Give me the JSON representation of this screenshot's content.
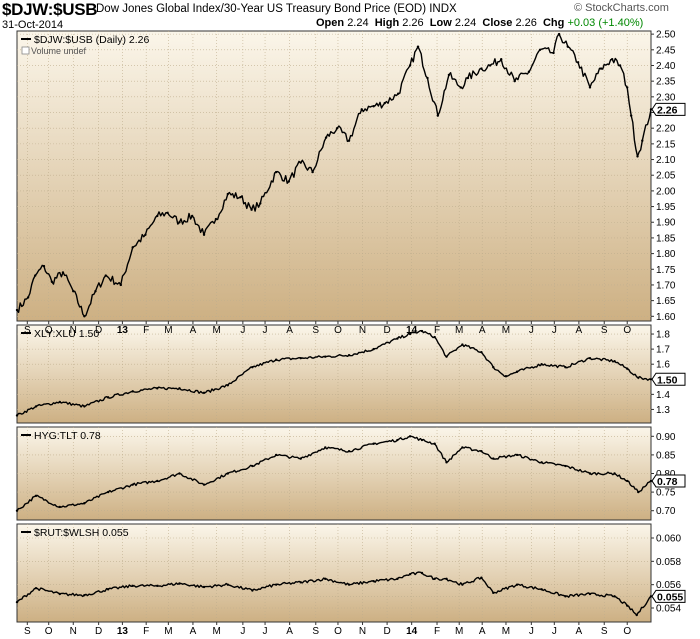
{
  "header": {
    "symbol": "$DJW:$USB",
    "description": "Dow Jones Global Index/30-Year US Treasury Bond Price (EOD)",
    "exchange": "INDX",
    "date": "31-Oct-2014",
    "open_label": "Open",
    "open": "2.24",
    "high_label": "High",
    "high": "2.26",
    "low_label": "Low",
    "low": "2.24",
    "close_label": "Close",
    "close": "2.26",
    "chg_label": "Chg",
    "chg": "+0.03 (+1.40%)",
    "logo": "© StockCharts.com",
    "chg_color": "#008800"
  },
  "chart_data": [
    {
      "type": "line",
      "legend": "$DJW:$USB (Daily) 2.26",
      "note": "Volume undef",
      "last_value": "2.26",
      "ylim": [
        1.585,
        2.51
      ],
      "yticks": [
        "1.60",
        "1.65",
        "1.70",
        "1.75",
        "1.80",
        "1.85",
        "1.90",
        "1.95",
        "2.00",
        "2.05",
        "2.10",
        "2.15",
        "2.20",
        "2.25",
        "2.30",
        "2.35",
        "2.40",
        "2.45",
        "2.50"
      ],
      "x": [
        "2012-08-22",
        "2012-09-05",
        "2012-09-14",
        "2012-09-25",
        "2012-10-05",
        "2012-10-19",
        "2012-11-01",
        "2012-11-15",
        "2012-11-29",
        "2012-12-12",
        "2012-12-31",
        "2013-01-15",
        "2013-01-31",
        "2013-02-15",
        "2013-02-28",
        "2013-03-15",
        "2013-03-31",
        "2013-04-15",
        "2013-04-30",
        "2013-05-15",
        "2013-05-31",
        "2013-06-14",
        "2013-06-25",
        "2013-07-15",
        "2013-07-31",
        "2013-08-15",
        "2013-08-30",
        "2013-09-16",
        "2013-09-30",
        "2013-10-15",
        "2013-10-31",
        "2013-11-15",
        "2013-11-29",
        "2013-12-16",
        "2013-12-31",
        "2014-01-10",
        "2014-01-22",
        "2014-02-04",
        "2014-02-18",
        "2014-03-05",
        "2014-03-14",
        "2014-03-31",
        "2014-04-11",
        "2014-04-25",
        "2014-05-12",
        "2014-05-30",
        "2014-06-13",
        "2014-06-30",
        "2014-07-07",
        "2014-07-18",
        "2014-07-31",
        "2014-08-15",
        "2014-08-29",
        "2014-09-12",
        "2014-09-22",
        "2014-10-01",
        "2014-10-06",
        "2014-10-14",
        "2014-10-20",
        "2014-10-31"
      ],
      "series": [
        {
          "values": [
            1.62,
            1.66,
            1.73,
            1.76,
            1.71,
            1.74,
            1.68,
            1.6,
            1.68,
            1.73,
            1.7,
            1.82,
            1.86,
            1.92,
            1.93,
            1.9,
            1.92,
            1.86,
            1.91,
            1.99,
            1.98,
            1.94,
            1.96,
            2.06,
            2.03,
            2.09,
            2.06,
            2.17,
            2.2,
            2.16,
            2.26,
            2.27,
            2.28,
            2.31,
            2.4,
            2.46,
            2.36,
            2.24,
            2.37,
            2.33,
            2.36,
            2.39,
            2.4,
            2.42,
            2.35,
            2.38,
            2.45,
            2.44,
            2.5,
            2.46,
            2.41,
            2.33,
            2.39,
            2.42,
            2.4,
            2.33,
            2.24,
            2.11,
            2.16,
            2.26
          ]
        }
      ]
    },
    {
      "type": "line",
      "legend": "XLY:XLU 1.50",
      "last_value": "1.50",
      "ylim": [
        1.21,
        1.86
      ],
      "yticks": [
        "1.3",
        "1.4",
        "1.5",
        "1.6",
        "1.7",
        "1.8"
      ],
      "x": [
        "2012-08-22",
        "2012-09-15",
        "2012-10-15",
        "2012-11-15",
        "2012-12-15",
        "2013-01-15",
        "2013-02-15",
        "2013-03-15",
        "2013-04-15",
        "2013-05-15",
        "2013-06-15",
        "2013-07-15",
        "2013-08-15",
        "2013-09-15",
        "2013-10-15",
        "2013-11-15",
        "2013-12-15",
        "2013-12-31",
        "2014-01-15",
        "2014-01-31",
        "2014-02-15",
        "2014-03-07",
        "2014-03-31",
        "2014-04-15",
        "2014-05-01",
        "2014-05-15",
        "2014-06-15",
        "2014-07-15",
        "2014-08-15",
        "2014-09-15",
        "2014-10-01",
        "2014-10-15",
        "2014-10-31"
      ],
      "series": [
        {
          "values": [
            1.26,
            1.32,
            1.35,
            1.32,
            1.38,
            1.42,
            1.44,
            1.44,
            1.41,
            1.46,
            1.58,
            1.63,
            1.64,
            1.65,
            1.66,
            1.7,
            1.77,
            1.8,
            1.82,
            1.78,
            1.65,
            1.73,
            1.68,
            1.58,
            1.52,
            1.55,
            1.6,
            1.58,
            1.64,
            1.62,
            1.57,
            1.51,
            1.5
          ]
        }
      ]
    },
    {
      "type": "line",
      "legend": "HYG:TLT 0.78",
      "last_value": "0.78",
      "ylim": [
        0.675,
        0.925
      ],
      "yticks": [
        "0.70",
        "0.75",
        "0.80",
        "0.85",
        "0.90"
      ],
      "x": [
        "2012-08-22",
        "2012-09-15",
        "2012-10-15",
        "2012-11-15",
        "2012-12-15",
        "2013-01-15",
        "2013-02-15",
        "2013-03-15",
        "2013-04-15",
        "2013-05-15",
        "2013-06-15",
        "2013-07-15",
        "2013-08-15",
        "2013-09-15",
        "2013-10-15",
        "2013-11-15",
        "2013-12-15",
        "2013-12-31",
        "2014-01-15",
        "2014-01-31",
        "2014-02-15",
        "2014-03-07",
        "2014-03-31",
        "2014-04-15",
        "2014-05-15",
        "2014-06-15",
        "2014-07-15",
        "2014-08-15",
        "2014-09-15",
        "2014-10-01",
        "2014-10-15",
        "2014-10-31"
      ],
      "series": [
        {
          "values": [
            0.7,
            0.74,
            0.71,
            0.72,
            0.75,
            0.77,
            0.78,
            0.8,
            0.77,
            0.8,
            0.82,
            0.85,
            0.84,
            0.87,
            0.86,
            0.88,
            0.89,
            0.9,
            0.89,
            0.88,
            0.83,
            0.87,
            0.86,
            0.84,
            0.85,
            0.83,
            0.82,
            0.8,
            0.8,
            0.78,
            0.75,
            0.78
          ]
        }
      ]
    },
    {
      "type": "line",
      "legend": "$RUT:$WLSH 0.055",
      "last_value": "0.055",
      "ylim": [
        0.0528,
        0.0612
      ],
      "yticks": [
        "0.054",
        "0.055",
        "0.056",
        "0.058",
        "0.060"
      ],
      "x": [
        "2012-08-22",
        "2012-09-15",
        "2012-10-15",
        "2012-11-15",
        "2012-12-15",
        "2013-01-15",
        "2013-02-15",
        "2013-03-15",
        "2013-04-15",
        "2013-05-15",
        "2013-06-15",
        "2013-07-15",
        "2013-08-15",
        "2013-09-15",
        "2013-10-15",
        "2013-11-15",
        "2013-12-15",
        "2013-12-31",
        "2014-01-15",
        "2014-01-31",
        "2014-02-15",
        "2014-03-07",
        "2014-03-31",
        "2014-04-15",
        "2014-05-15",
        "2014-06-15",
        "2014-07-15",
        "2014-08-15",
        "2014-09-15",
        "2014-10-01",
        "2014-10-13",
        "2014-10-31"
      ],
      "series": [
        {
          "values": [
            0.0545,
            0.0557,
            0.0552,
            0.0551,
            0.0556,
            0.0559,
            0.0559,
            0.0561,
            0.0558,
            0.056,
            0.0555,
            0.056,
            0.0562,
            0.0565,
            0.056,
            0.0563,
            0.0565,
            0.0569,
            0.057,
            0.0565,
            0.0565,
            0.056,
            0.0566,
            0.0553,
            0.056,
            0.0556,
            0.055,
            0.0552,
            0.055,
            0.0542,
            0.0534,
            0.055
          ]
        }
      ]
    }
  ],
  "x_axis": {
    "start": "2012-08-22",
    "end": "2014-10-31",
    "ticks": [
      {
        "date": "2012-09-04",
        "label": "S"
      },
      {
        "date": "2012-10-01",
        "label": "O"
      },
      {
        "date": "2012-11-01",
        "label": "N"
      },
      {
        "date": "2012-12-03",
        "label": "D"
      },
      {
        "date": "2013-01-02",
        "label": "13",
        "bold": true
      },
      {
        "date": "2013-02-01",
        "label": "F"
      },
      {
        "date": "2013-03-01",
        "label": "M"
      },
      {
        "date": "2013-04-01",
        "label": "A"
      },
      {
        "date": "2013-05-01",
        "label": "M"
      },
      {
        "date": "2013-06-03",
        "label": "J"
      },
      {
        "date": "2013-07-01",
        "label": "J"
      },
      {
        "date": "2013-08-01",
        "label": "A"
      },
      {
        "date": "2013-09-03",
        "label": "S"
      },
      {
        "date": "2013-10-01",
        "label": "O"
      },
      {
        "date": "2013-11-01",
        "label": "N"
      },
      {
        "date": "2013-12-02",
        "label": "D"
      },
      {
        "date": "2014-01-02",
        "label": "14",
        "bold": true
      },
      {
        "date": "2014-02-03",
        "label": "F"
      },
      {
        "date": "2014-03-03",
        "label": "M"
      },
      {
        "date": "2014-04-01",
        "label": "A"
      },
      {
        "date": "2014-05-01",
        "label": "M"
      },
      {
        "date": "2014-06-02",
        "label": "J"
      },
      {
        "date": "2014-07-01",
        "label": "J"
      },
      {
        "date": "2014-08-01",
        "label": "A"
      },
      {
        "date": "2014-09-02",
        "label": "S"
      },
      {
        "date": "2014-10-01",
        "label": "O"
      }
    ]
  },
  "colors": {
    "panel_top": "#fbf6ea",
    "panel_bottom": "#cdb083",
    "line": "#000000",
    "grid": "#bfae8e",
    "border": "#333333"
  }
}
